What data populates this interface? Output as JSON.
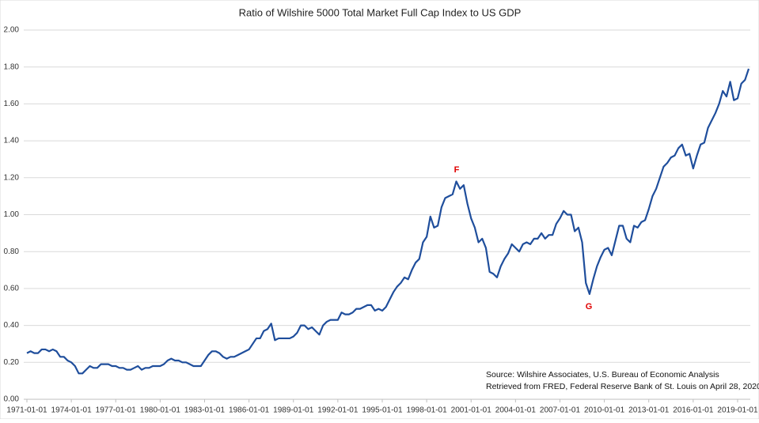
{
  "chart_data": {
    "type": "line",
    "title": "Ratio of Wilshire 5000 Total Market Full Cap Index to US GDP",
    "annotations": [
      "F",
      "G"
    ],
    "source": [
      "Source: Wilshire Associates, U.S. Bureau of Economic Analysis",
      "Retrieved from FRED, Federal Reserve Bank of St. Louis on April 28, 2020"
    ],
    "categories": [
      "1971-01-01",
      null,
      null,
      null,
      null,
      null,
      null,
      null,
      null,
      null,
      null,
      null,
      "1974-01-01",
      null,
      null,
      null,
      null,
      null,
      null,
      null,
      null,
      null,
      null,
      null,
      "1977-01-01",
      null,
      null,
      null,
      null,
      null,
      null,
      null,
      null,
      null,
      null,
      null,
      "1980-01-01",
      null,
      null,
      null,
      null,
      null,
      null,
      null,
      null,
      null,
      null,
      null,
      "1983-01-01",
      null,
      null,
      null,
      null,
      null,
      null,
      null,
      null,
      null,
      null,
      null,
      "1986-01-01",
      null,
      null,
      null,
      null,
      null,
      null,
      null,
      null,
      null,
      null,
      null,
      "1989-01-01",
      null,
      null,
      null,
      null,
      null,
      null,
      null,
      null,
      null,
      null,
      null,
      "1992-01-01",
      null,
      null,
      null,
      null,
      null,
      null,
      null,
      null,
      null,
      null,
      null,
      "1995-01-01",
      null,
      null,
      null,
      null,
      null,
      null,
      null,
      null,
      null,
      null,
      null,
      "1998-01-01",
      null,
      null,
      null,
      null,
      null,
      null,
      null,
      null,
      null,
      null,
      null,
      "2001-01-01",
      null,
      null,
      null,
      null,
      null,
      null,
      null,
      null,
      null,
      null,
      null,
      "2004-01-01",
      null,
      null,
      null,
      null,
      null,
      null,
      null,
      null,
      null,
      null,
      null,
      "2007-01-01",
      null,
      null,
      null,
      null,
      null,
      null,
      null,
      null,
      null,
      null,
      null,
      "2010-01-01",
      null,
      null,
      null,
      null,
      null,
      null,
      null,
      null,
      null,
      null,
      null,
      "2013-01-01",
      null,
      null,
      null,
      null,
      null,
      null,
      null,
      null,
      null,
      null,
      null,
      "2016-01-01",
      null,
      null,
      null,
      null,
      null,
      null,
      null,
      null,
      null,
      null,
      null,
      "2019-01-01",
      null,
      null,
      null
    ],
    "series": [
      {
        "color": "#1f4e9c",
        "values": [
          0.25,
          0.26,
          0.25,
          0.25,
          0.27,
          0.27,
          0.26,
          0.27,
          0.26,
          0.23,
          0.23,
          0.21,
          0.2,
          0.18,
          0.14,
          0.14,
          0.16,
          0.18,
          0.17,
          0.17,
          0.19,
          0.19,
          0.19,
          0.18,
          0.18,
          0.17,
          0.17,
          0.16,
          0.16,
          0.17,
          0.18,
          0.16,
          0.17,
          0.17,
          0.18,
          0.18,
          0.18,
          0.19,
          0.21,
          0.22,
          0.21,
          0.21,
          0.2,
          0.2,
          0.19,
          0.18,
          0.18,
          0.18,
          0.21,
          0.24,
          0.26,
          0.26,
          0.25,
          0.23,
          0.22,
          0.23,
          0.23,
          0.24,
          0.25,
          0.26,
          0.27,
          0.3,
          0.33,
          0.33,
          0.37,
          0.38,
          0.41,
          0.32,
          0.33,
          0.33,
          0.33,
          0.33,
          0.34,
          0.36,
          0.4,
          0.4,
          0.38,
          0.39,
          0.37,
          0.35,
          0.4,
          0.42,
          0.43,
          0.43,
          0.43,
          0.47,
          0.46,
          0.46,
          0.47,
          0.49,
          0.49,
          0.5,
          0.51,
          0.51,
          0.48,
          0.49,
          0.48,
          0.5,
          0.54,
          0.58,
          0.61,
          0.63,
          0.66,
          0.65,
          0.7,
          0.74,
          0.76,
          0.85,
          0.88,
          0.99,
          0.93,
          0.94,
          1.04,
          1.09,
          1.1,
          1.11,
          1.18,
          1.14,
          1.16,
          1.06,
          0.98,
          0.93,
          0.85,
          0.87,
          0.82,
          0.69,
          0.68,
          0.66,
          0.72,
          0.76,
          0.79,
          0.84,
          0.82,
          0.8,
          0.84,
          0.85,
          0.84,
          0.87,
          0.87,
          0.9,
          0.87,
          0.89,
          0.89,
          0.95,
          0.98,
          1.02,
          1.0,
          1.0,
          0.91,
          0.93,
          0.85,
          0.63,
          0.57,
          0.65,
          0.72,
          0.77,
          0.81,
          0.82,
          0.78,
          0.86,
          0.94,
          0.94,
          0.87,
          0.85,
          0.94,
          0.93,
          0.96,
          0.97,
          1.03,
          1.1,
          1.14,
          1.2,
          1.26,
          1.28,
          1.31,
          1.32,
          1.36,
          1.38,
          1.32,
          1.33,
          1.25,
          1.32,
          1.38,
          1.39,
          1.47,
          1.51,
          1.55,
          1.6,
          1.67,
          1.64,
          1.72,
          1.62,
          1.63,
          1.71,
          1.73,
          1.79
        ]
      }
    ],
    "ylim": [
      0,
      2
    ],
    "yticks": [
      {
        "value": 0,
        "label": "0.00"
      },
      {
        "value": 0.2,
        "label": "0.20"
      },
      {
        "value": 0.4,
        "label": "0.40"
      },
      {
        "value": 0.6,
        "label": "0.60"
      },
      {
        "value": 0.8,
        "label": "0.80"
      },
      {
        "value": 1,
        "label": "1.00"
      },
      {
        "value": 1.2,
        "label": "1.20"
      },
      {
        "value": 1.4,
        "label": "1.40"
      },
      {
        "value": 1.6,
        "label": "1.60"
      },
      {
        "value": 1.8,
        "label": "1.80"
      },
      {
        "value": 2,
        "label": "2.00"
      }
    ],
    "grid": true
  }
}
